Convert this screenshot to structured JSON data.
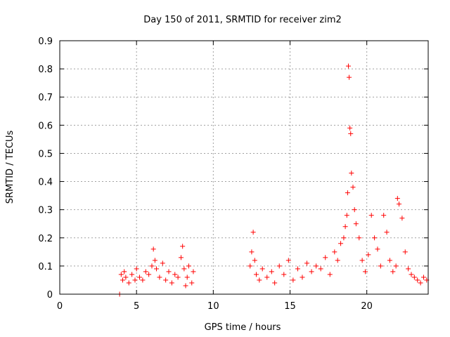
{
  "chart_data": {
    "type": "scatter",
    "title": "Day 150 of 2011, SRMTID for receiver zim2",
    "xlabel": "GPS time / hours",
    "ylabel": "SRMTID / TECUs",
    "xlim": [
      0,
      24
    ],
    "ylim": [
      0,
      0.9
    ],
    "xticks": [
      "0",
      "5",
      "10",
      "15",
      "20"
    ],
    "yticks": [
      "0",
      "0.1",
      "0.2",
      "0.3",
      "0.4",
      "0.5",
      "0.6",
      "0.7",
      "0.8",
      "0.9"
    ],
    "grid": true,
    "marker": "+",
    "color": "#ff0000",
    "series": [
      {
        "name": "SRMTID",
        "x": [
          3.9,
          4.0,
          4.1,
          4.2,
          4.3,
          4.5,
          4.7,
          4.9,
          5.0,
          5.2,
          5.4,
          5.6,
          5.8,
          6.0,
          6.1,
          6.2,
          6.3,
          6.5,
          6.7,
          6.9,
          7.1,
          7.3,
          7.5,
          7.7,
          7.9,
          8.0,
          8.1,
          8.2,
          8.3,
          8.4,
          8.6,
          8.7,
          12.4,
          12.5,
          12.6,
          12.7,
          12.8,
          13.0,
          13.2,
          13.5,
          13.8,
          14.0,
          14.3,
          14.6,
          14.9,
          15.2,
          15.5,
          15.8,
          16.1,
          16.4,
          16.7,
          17.0,
          17.3,
          17.6,
          17.9,
          18.1,
          18.3,
          18.5,
          18.6,
          18.7,
          18.75,
          18.8,
          18.85,
          18.9,
          18.95,
          19.0,
          19.1,
          19.2,
          19.3,
          19.5,
          19.7,
          19.9,
          20.1,
          20.3,
          20.5,
          20.7,
          20.9,
          21.1,
          21.3,
          21.5,
          21.7,
          21.9,
          22.0,
          22.1,
          22.3,
          22.5,
          22.7,
          22.9,
          23.1,
          23.3,
          23.5,
          23.7,
          23.9
        ],
        "y": [
          0.0,
          0.07,
          0.05,
          0.08,
          0.06,
          0.04,
          0.07,
          0.05,
          0.09,
          0.06,
          0.05,
          0.08,
          0.07,
          0.1,
          0.16,
          0.12,
          0.09,
          0.06,
          0.11,
          0.05,
          0.08,
          0.04,
          0.07,
          0.06,
          0.13,
          0.17,
          0.09,
          0.03,
          0.06,
          0.1,
          0.04,
          0.08,
          0.1,
          0.15,
          0.22,
          0.12,
          0.07,
          0.05,
          0.09,
          0.06,
          0.08,
          0.04,
          0.1,
          0.07,
          0.12,
          0.05,
          0.09,
          0.06,
          0.11,
          0.08,
          0.1,
          0.09,
          0.13,
          0.07,
          0.15,
          0.12,
          0.18,
          0.2,
          0.24,
          0.28,
          0.36,
          0.81,
          0.77,
          0.59,
          0.57,
          0.43,
          0.38,
          0.3,
          0.25,
          0.2,
          0.12,
          0.08,
          0.14,
          0.28,
          0.2,
          0.16,
          0.1,
          0.28,
          0.22,
          0.12,
          0.08,
          0.1,
          0.34,
          0.32,
          0.27,
          0.15,
          0.09,
          0.07,
          0.06,
          0.05,
          0.04,
          0.06,
          0.05
        ]
      }
    ]
  }
}
